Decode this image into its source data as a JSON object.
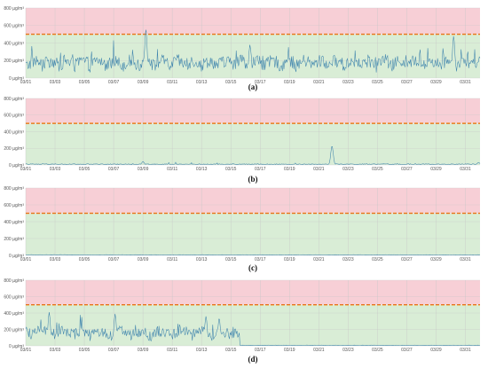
{
  "colors": {
    "danger_zone": "#f7cfd6",
    "safe_zone": "#d9edd6",
    "threshold_line": "#f0a020",
    "threshold_line_inner": "#e04020",
    "series_line": "#3f84ad",
    "grid": "#c8c8c8"
  },
  "chart_data": [
    {
      "type": "line",
      "panel_label": "(a)",
      "y_ticks": [
        "0 µg/m³",
        "200 µg/m³",
        "400 µg/m³",
        "600 µg/m³",
        "800 µg/m³"
      ],
      "ylim": [
        0,
        800
      ],
      "threshold": 500,
      "x_ticks": [
        "03/01",
        "03/03",
        "03/05",
        "03/07",
        "03/09",
        "03/11",
        "03/13",
        "03/15",
        "03/17",
        "03/19",
        "03/21",
        "03/23",
        "03/25",
        "03/27",
        "03/29",
        "03/31"
      ],
      "x_range_days": [
        1,
        32
      ],
      "profile": "high",
      "peaks": [
        {
          "day": 9.2,
          "value": 560
        },
        {
          "day": 30.2,
          "value": 480
        },
        {
          "day": 16.3,
          "value": 380
        }
      ]
    },
    {
      "type": "line",
      "panel_label": "(b)",
      "y_ticks": [
        "0 µg/m³",
        "200 µg/m³",
        "400 µg/m³",
        "600 µg/m³",
        "800 µg/m³"
      ],
      "ylim": [
        0,
        800
      ],
      "threshold": 500,
      "x_ticks": [
        "03/01",
        "03/03",
        "03/05",
        "03/07",
        "03/09",
        "03/11",
        "03/13",
        "03/15",
        "03/17",
        "03/19",
        "03/21",
        "03/23",
        "03/25",
        "03/27",
        "03/29",
        "03/31"
      ],
      "x_range_days": [
        1,
        32
      ],
      "profile": "low",
      "peaks": [
        {
          "day": 21.9,
          "value": 230
        },
        {
          "day": 9.0,
          "value": 40
        },
        {
          "day": 31.9,
          "value": 30
        }
      ]
    },
    {
      "type": "line",
      "panel_label": "(c)",
      "y_ticks": [
        "0 µg/m³",
        "200 µg/m³",
        "400 µg/m³",
        "600 µg/m³",
        "800 µg/m³"
      ],
      "ylim": [
        0,
        800
      ],
      "threshold": 500,
      "x_ticks": [
        "03/01",
        "03/03",
        "03/05",
        "03/07",
        "03/09",
        "03/11",
        "03/13",
        "03/15",
        "03/17",
        "03/19",
        "03/21",
        "03/23",
        "03/25",
        "03/27",
        "03/29",
        "03/31"
      ],
      "x_range_days": [
        1,
        32
      ],
      "profile": "flat",
      "peaks": []
    },
    {
      "type": "line",
      "panel_label": "(d)",
      "y_ticks": [
        "0 µg/m³",
        "200 µg/m³",
        "400 µg/m³",
        "600 µg/m³",
        "800 µg/m³"
      ],
      "ylim": [
        0,
        800
      ],
      "threshold": 500,
      "x_ticks": [
        "03/01",
        "03/03",
        "03/05",
        "03/07",
        "03/09",
        "03/11",
        "03/13",
        "03/15",
        "03/17",
        "03/19",
        "03/21",
        "03/23",
        "03/25",
        "03/27",
        "03/29",
        "03/31"
      ],
      "x_range_days": [
        1,
        32
      ],
      "profile": "first-half",
      "peaks": [
        {
          "day": 2.6,
          "value": 410
        },
        {
          "day": 7.1,
          "value": 390
        },
        {
          "day": 13.3,
          "value": 360
        },
        {
          "day": 14.2,
          "value": 340
        }
      ]
    }
  ]
}
